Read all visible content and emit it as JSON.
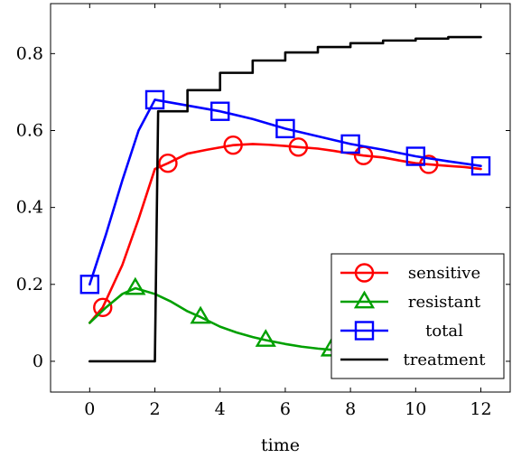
{
  "chart_data": {
    "type": "line",
    "title": "",
    "xlabel": "time",
    "ylabel": "",
    "xlim": [
      -1.2,
      12.9
    ],
    "ylim": [
      -0.08,
      0.93
    ],
    "x_ticks": [
      0,
      2,
      4,
      6,
      8,
      10,
      12
    ],
    "y_ticks": [
      0,
      0.2,
      0.4,
      0.6,
      0.8
    ],
    "x_tick_labels": [
      "0",
      "2",
      "4",
      "6",
      "8",
      "10",
      "12"
    ],
    "y_tick_labels": [
      "0",
      "0.2",
      "0.4",
      "0.6",
      "0.8"
    ],
    "grid": false,
    "legend_position": "bottom-right",
    "series": [
      {
        "name": "sensitive",
        "color": "#ff0000",
        "marker": "circle",
        "x": [
          0,
          0.4,
          1,
          1.5,
          2,
          2.4,
          3,
          3.6,
          4.4,
          5,
          5.5,
          6,
          6.4,
          7,
          7.5,
          8,
          8.4,
          9,
          9.5,
          10,
          10.4,
          11,
          11.5,
          12
        ],
        "y": [
          0.1,
          0.14,
          0.25,
          0.37,
          0.5,
          0.515,
          0.54,
          0.55,
          0.562,
          0.565,
          0.563,
          0.56,
          0.557,
          0.553,
          0.547,
          0.54,
          0.535,
          0.53,
          0.522,
          0.515,
          0.512,
          0.508,
          0.505,
          0.5
        ],
        "marker_x": [
          0.4,
          2.4,
          4.4,
          6.4,
          8.4,
          10.4
        ],
        "marker_y": [
          0.14,
          0.515,
          0.562,
          0.557,
          0.535,
          0.512
        ]
      },
      {
        "name": "resistant",
        "color": "#00a000",
        "marker": "triangle",
        "x": [
          0,
          0.5,
          1,
          1.4,
          2,
          2.5,
          3,
          3.4,
          4,
          4.5,
          5,
          5.4,
          6,
          6.5,
          7,
          7.4,
          8
        ],
        "y": [
          0.1,
          0.14,
          0.175,
          0.19,
          0.175,
          0.155,
          0.13,
          0.115,
          0.09,
          0.075,
          0.063,
          0.055,
          0.045,
          0.038,
          0.033,
          0.03,
          0.026
        ],
        "marker_x": [
          1.4,
          3.4,
          5.4,
          7.4
        ],
        "marker_y": [
          0.19,
          0.115,
          0.055,
          0.03
        ]
      },
      {
        "name": "total",
        "color": "#0000ff",
        "marker": "square",
        "x": [
          0,
          0.5,
          1,
          1.5,
          2,
          3,
          4,
          5,
          6,
          7,
          8,
          9,
          10,
          11,
          12
        ],
        "y": [
          0.2,
          0.33,
          0.47,
          0.6,
          0.68,
          0.665,
          0.65,
          0.63,
          0.605,
          0.585,
          0.565,
          0.55,
          0.533,
          0.52,
          0.508
        ],
        "marker_x": [
          0,
          2,
          4,
          6,
          8,
          10,
          12
        ],
        "marker_y": [
          0.2,
          0.68,
          0.65,
          0.605,
          0.565,
          0.533,
          0.508
        ]
      },
      {
        "name": "treatment",
        "color": "#000000",
        "marker": "none",
        "x": [
          0,
          2,
          2.1,
          3,
          3,
          4,
          4,
          5,
          5,
          6,
          6,
          7,
          7,
          8,
          8,
          9,
          9,
          10,
          10,
          11,
          11,
          12
        ],
        "y": [
          0,
          0,
          0.65,
          0.65,
          0.705,
          0.705,
          0.75,
          0.75,
          0.782,
          0.782,
          0.803,
          0.803,
          0.817,
          0.817,
          0.827,
          0.827,
          0.834,
          0.834,
          0.839,
          0.839,
          0.843,
          0.843
        ]
      }
    ]
  }
}
